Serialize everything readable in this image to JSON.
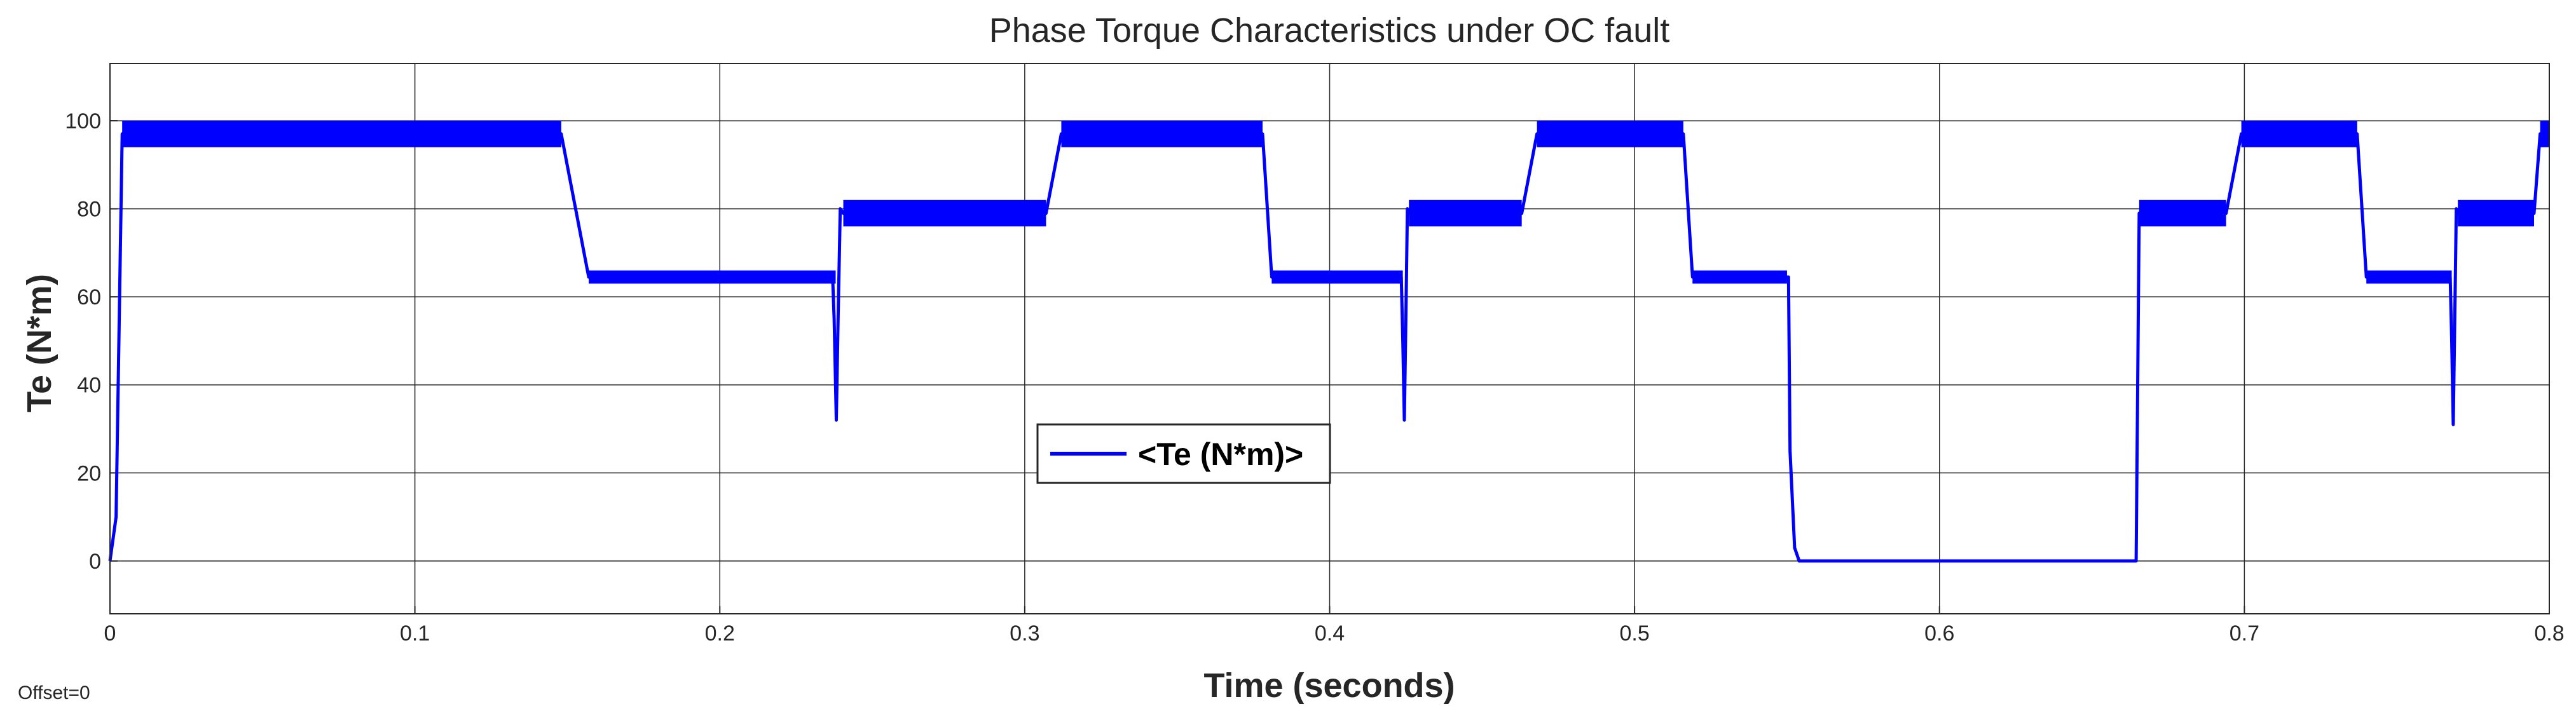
{
  "chart_data": {
    "type": "line",
    "title": "Phase Torque Characteristics under OC fault",
    "xlabel": "Time (seconds)",
    "ylabel": "Te (N*m)",
    "xlim": [
      0,
      0.8
    ],
    "ylim": [
      -12,
      113
    ],
    "xticks": [
      0,
      0.1,
      0.2,
      0.3,
      0.4,
      0.5,
      0.6,
      0.7,
      0.8
    ],
    "xtick_labels": [
      "0",
      "0.1",
      "0.2",
      "0.3",
      "0.4",
      "0.5",
      "0.6",
      "0.7",
      "0.8"
    ],
    "yticks": [
      0,
      20,
      40,
      60,
      80,
      100
    ],
    "ytick_labels": [
      "0",
      "20",
      "40",
      "60",
      "80",
      "100"
    ],
    "grid": true,
    "legend_position": "center",
    "offset_label": "Offset=0",
    "series": [
      {
        "name": "<Te (N*m)>",
        "color": "#0000ff",
        "ripple_bands": [
          {
            "t0": 0.004,
            "t1": 0.148,
            "low": 94,
            "high": 100
          },
          {
            "t0": 0.157,
            "t1": 0.238,
            "low": 63,
            "high": 66
          },
          {
            "t0": 0.2405,
            "t1": 0.307,
            "low": 76,
            "high": 82
          },
          {
            "t0": 0.312,
            "t1": 0.378,
            "low": 94,
            "high": 100
          },
          {
            "t0": 0.381,
            "t1": 0.424,
            "low": 63,
            "high": 66
          },
          {
            "t0": 0.426,
            "t1": 0.463,
            "low": 76,
            "high": 82
          },
          {
            "t0": 0.468,
            "t1": 0.516,
            "low": 94,
            "high": 100
          },
          {
            "t0": 0.519,
            "t1": 0.55,
            "low": 63,
            "high": 66
          },
          {
            "t0": 0.6655,
            "t1": 0.694,
            "low": 76,
            "high": 82
          },
          {
            "t0": 0.699,
            "t1": 0.737,
            "low": 94,
            "high": 100
          },
          {
            "t0": 0.74,
            "t1": 0.768,
            "low": 63,
            "high": 66
          },
          {
            "t0": 0.77,
            "t1": 0.795,
            "low": 76,
            "high": 82
          },
          {
            "t0": 0.797,
            "t1": 0.8,
            "low": 94,
            "high": 100
          }
        ],
        "points": [
          [
            0,
            0
          ],
          [
            0.002,
            10
          ],
          [
            0.004,
            97
          ],
          [
            0.148,
            97
          ],
          [
            0.157,
            64.5
          ],
          [
            0.237,
            64.5
          ],
          [
            0.2375,
            55
          ],
          [
            0.2382,
            32
          ],
          [
            0.2388,
            55
          ],
          [
            0.2395,
            80
          ],
          [
            0.2405,
            79
          ],
          [
            0.307,
            79
          ],
          [
            0.312,
            97
          ],
          [
            0.378,
            97
          ],
          [
            0.381,
            64.5
          ],
          [
            0.4235,
            64.5
          ],
          [
            0.424,
            50
          ],
          [
            0.4245,
            32
          ],
          [
            0.425,
            55
          ],
          [
            0.4255,
            80
          ],
          [
            0.426,
            79
          ],
          [
            0.463,
            79
          ],
          [
            0.468,
            97
          ],
          [
            0.516,
            97
          ],
          [
            0.519,
            64.5
          ],
          [
            0.5505,
            64.5
          ],
          [
            0.551,
            25
          ],
          [
            0.5525,
            3
          ],
          [
            0.554,
            0
          ],
          [
            0.6645,
            0
          ],
          [
            0.6655,
            79
          ],
          [
            0.694,
            79
          ],
          [
            0.699,
            97
          ],
          [
            0.737,
            97
          ],
          [
            0.74,
            64.5
          ],
          [
            0.7675,
            64.5
          ],
          [
            0.768,
            50
          ],
          [
            0.7685,
            31
          ],
          [
            0.769,
            55
          ],
          [
            0.7695,
            80
          ],
          [
            0.77,
            79
          ],
          [
            0.795,
            79
          ],
          [
            0.797,
            97
          ],
          [
            0.8,
            97
          ]
        ]
      }
    ]
  }
}
